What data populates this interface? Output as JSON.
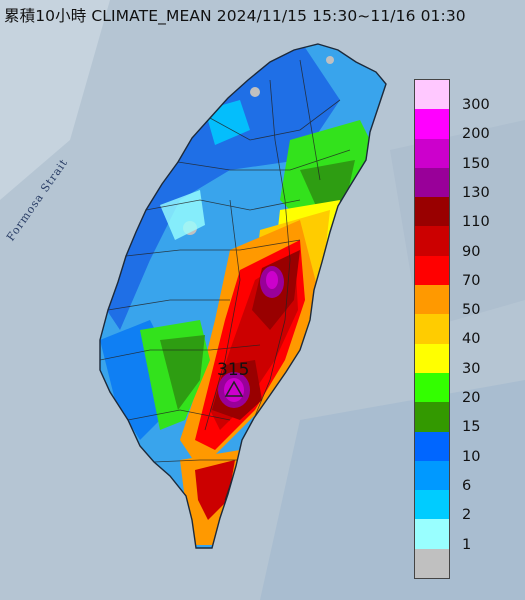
{
  "title": "累積10小時 CLIMATE_MEAN 2024/11/15 15:30~11/16 01:30",
  "sea_label": "Formosa Strait",
  "peak": {
    "value_label": "315",
    "marker": "triangle-marker"
  },
  "legend": {
    "unit_levels": [
      {
        "label": "300",
        "color": "#ffc8ff"
      },
      {
        "label": "200",
        "color": "#ff00ff"
      },
      {
        "label": "150",
        "color": "#cc00cc"
      },
      {
        "label": "130",
        "color": "#990099"
      },
      {
        "label": "110",
        "color": "#990000"
      },
      {
        "label": "90",
        "color": "#cc0000"
      },
      {
        "label": "70",
        "color": "#ff0000"
      },
      {
        "label": "50",
        "color": "#ff9900"
      },
      {
        "label": "40",
        "color": "#ffcc00"
      },
      {
        "label": "30",
        "color": "#ffff00"
      },
      {
        "label": "20",
        "color": "#33ff00"
      },
      {
        "label": "15",
        "color": "#339900"
      },
      {
        "label": "10",
        "color": "#0066ff"
      },
      {
        "label": "6",
        "color": "#0099ff"
      },
      {
        "label": "2",
        "color": "#00ccff"
      },
      {
        "label": "1",
        "color": "#99ffff"
      }
    ],
    "bottom_swatch_color": "#c0c0c0"
  }
}
